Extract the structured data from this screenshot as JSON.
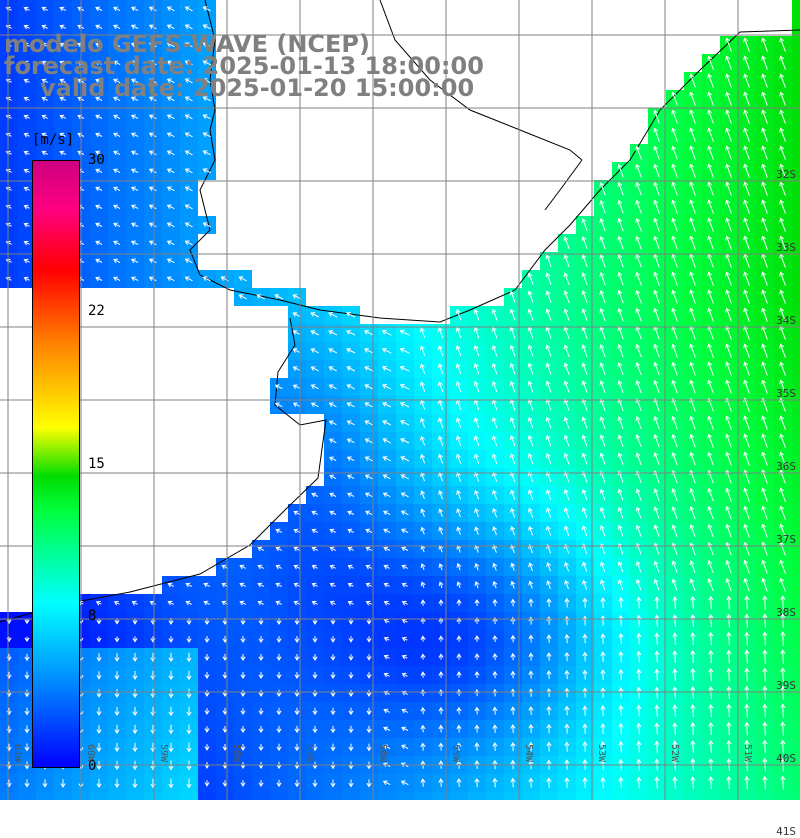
{
  "title": {
    "line1": "modelo GEFS-WAVE (NCEP)",
    "line2": "forecast date: 2025-01-13 18:00:00",
    "line3": "valid date: 2025-01-20 15:00:00"
  },
  "colorbar": {
    "unit": "[m/s]",
    "ticks": [
      {
        "label": "30",
        "value": 30
      },
      {
        "label": "22",
        "value": 22
      },
      {
        "label": "15",
        "value": 15
      },
      {
        "label": "8",
        "value": 8
      },
      {
        "label": "0",
        "value": 0
      }
    ],
    "min": 0,
    "max": 30
  },
  "map": {
    "variable": "wind speed and direction",
    "land_color": "#ffffff",
    "coastline_color": "#000000",
    "grid_color": "#808080",
    "arrow_color": "#ffffff",
    "lat_labels": [
      "32S",
      "33S",
      "34S",
      "35S",
      "36S",
      "37S",
      "38S",
      "39S",
      "40S",
      "41S"
    ],
    "lon_labels": [
      "61W",
      "60W",
      "59W",
      "58W",
      "57W",
      "56W",
      "55W",
      "54W",
      "53W",
      "52W",
      "51W"
    ]
  }
}
